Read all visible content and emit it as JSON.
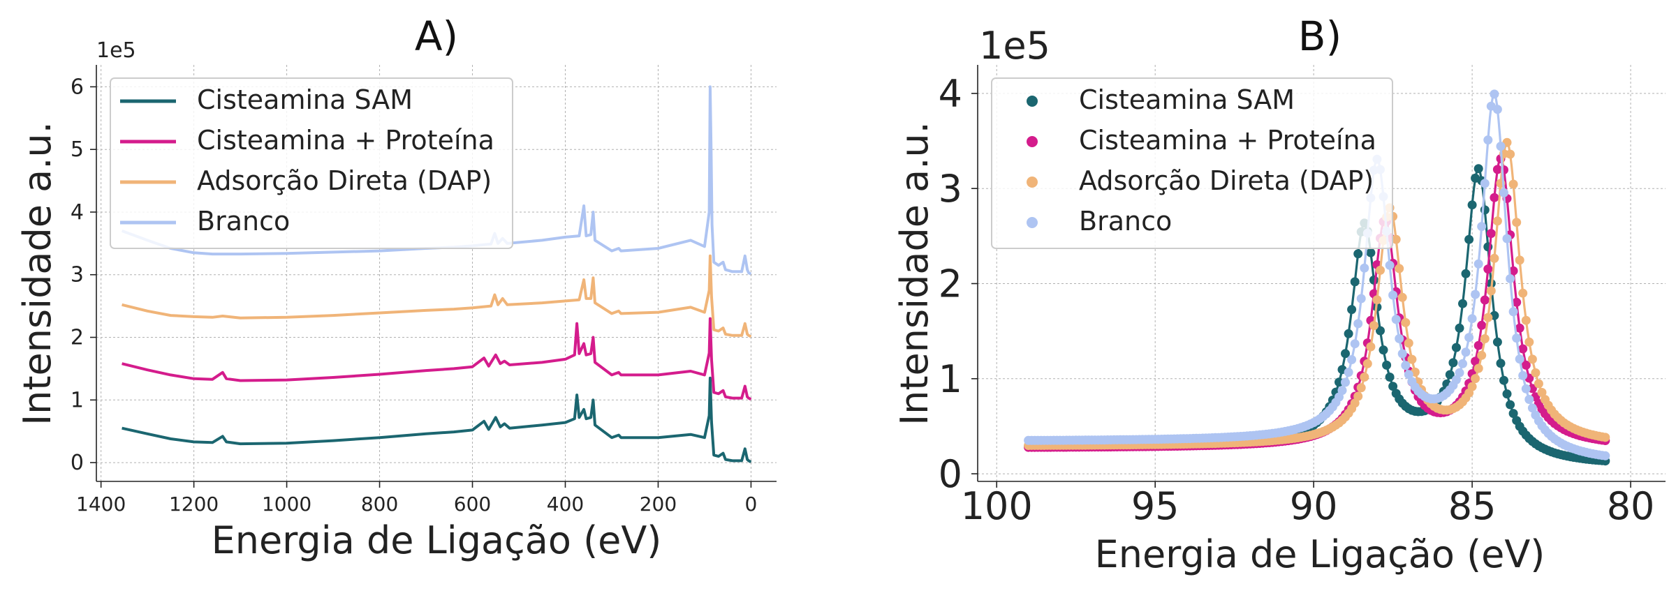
{
  "chart_data": [
    {
      "type": "line",
      "title": "A)",
      "xlabel": "Energia de Ligação (eV)",
      "ylabel": "Intensidade a.u.",
      "y_multiplier": "1e5",
      "xlim": [
        1410,
        -55
      ],
      "ylim": [
        -0.3,
        6.35
      ],
      "x_ticks": [
        1400,
        1200,
        1000,
        800,
        600,
        400,
        200,
        0
      ],
      "y_ticks": [
        0,
        1,
        2,
        3,
        4,
        5,
        6
      ],
      "grid": true,
      "legend_position": "top-left",
      "series": [
        {
          "name": "Cisteamina SAM",
          "color": "#1b6670",
          "baseline": 0,
          "points": [
            [
              1355,
              0.55
            ],
            [
              1300,
              0.46
            ],
            [
              1250,
              0.38
            ],
            [
              1200,
              0.33
            ],
            [
              1160,
              0.32
            ],
            [
              1138,
              0.42
            ],
            [
              1130,
              0.33
            ],
            [
              1100,
              0.3
            ],
            [
              1000,
              0.31
            ],
            [
              900,
              0.35
            ],
            [
              800,
              0.4
            ],
            [
              700,
              0.46
            ],
            [
              640,
              0.49
            ],
            [
              600,
              0.52
            ],
            [
              575,
              0.66
            ],
            [
              565,
              0.53
            ],
            [
              550,
              0.72
            ],
            [
              540,
              0.57
            ],
            [
              531,
              0.62
            ],
            [
              520,
              0.55
            ],
            [
              450,
              0.6
            ],
            [
              400,
              0.64
            ],
            [
              380,
              0.7
            ],
            [
              375,
              1.08
            ],
            [
              370,
              0.72
            ],
            [
              360,
              0.85
            ],
            [
              355,
              0.7
            ],
            [
              345,
              0.72
            ],
            [
              340,
              1.0
            ],
            [
              336,
              0.6
            ],
            [
              300,
              0.4
            ],
            [
              285,
              0.44
            ],
            [
              280,
              0.4
            ],
            [
              200,
              0.4
            ],
            [
              130,
              0.45
            ],
            [
              100,
              0.4
            ],
            [
              90,
              0.75
            ],
            [
              88,
              1.35
            ],
            [
              85,
              0.65
            ],
            [
              80,
              0.12
            ],
            [
              70,
              0.1
            ],
            [
              60,
              0.15
            ],
            [
              55,
              0.05
            ],
            [
              40,
              0.03
            ],
            [
              20,
              0.03
            ],
            [
              13,
              0.22
            ],
            [
              8,
              0.05
            ],
            [
              5,
              0.03
            ],
            [
              0,
              0.01
            ]
          ]
        },
        {
          "name": "Cisteamina + Proteína",
          "color": "#d41c8c",
          "baseline": 1,
          "points": [
            [
              1355,
              0.58
            ],
            [
              1300,
              0.48
            ],
            [
              1250,
              0.4
            ],
            [
              1200,
              0.34
            ],
            [
              1160,
              0.33
            ],
            [
              1138,
              0.44
            ],
            [
              1130,
              0.34
            ],
            [
              1100,
              0.31
            ],
            [
              1000,
              0.32
            ],
            [
              900,
              0.36
            ],
            [
              800,
              0.41
            ],
            [
              700,
              0.47
            ],
            [
              640,
              0.5
            ],
            [
              600,
              0.53
            ],
            [
              575,
              0.67
            ],
            [
              565,
              0.54
            ],
            [
              550,
              0.72
            ],
            [
              540,
              0.58
            ],
            [
              531,
              0.62
            ],
            [
              520,
              0.56
            ],
            [
              450,
              0.6
            ],
            [
              400,
              0.65
            ],
            [
              380,
              0.72
            ],
            [
              375,
              1.22
            ],
            [
              370,
              0.74
            ],
            [
              360,
              0.9
            ],
            [
              355,
              0.72
            ],
            [
              345,
              0.74
            ],
            [
              340,
              1.0
            ],
            [
              336,
              0.6
            ],
            [
              300,
              0.4
            ],
            [
              285,
              0.44
            ],
            [
              280,
              0.4
            ],
            [
              200,
              0.4
            ],
            [
              130,
              0.46
            ],
            [
              100,
              0.4
            ],
            [
              90,
              0.75
            ],
            [
              88,
              1.3
            ],
            [
              85,
              0.65
            ],
            [
              80,
              0.12
            ],
            [
              70,
              0.1
            ],
            [
              60,
              0.15
            ],
            [
              55,
              0.05
            ],
            [
              40,
              0.03
            ],
            [
              20,
              0.03
            ],
            [
              13,
              0.22
            ],
            [
              8,
              0.05
            ],
            [
              5,
              0.03
            ],
            [
              0,
              0.01
            ]
          ]
        },
        {
          "name": "Adsorção Direta (DAP)",
          "color": "#f0b478",
          "baseline": 2,
          "points": [
            [
              1355,
              0.52
            ],
            [
              1300,
              0.42
            ],
            [
              1250,
              0.35
            ],
            [
              1200,
              0.33
            ],
            [
              1160,
              0.32
            ],
            [
              1138,
              0.34
            ],
            [
              1100,
              0.31
            ],
            [
              1000,
              0.32
            ],
            [
              900,
              0.35
            ],
            [
              800,
              0.39
            ],
            [
              700,
              0.43
            ],
            [
              640,
              0.45
            ],
            [
              600,
              0.47
            ],
            [
              560,
              0.5
            ],
            [
              552,
              0.68
            ],
            [
              545,
              0.52
            ],
            [
              535,
              0.62
            ],
            [
              525,
              0.52
            ],
            [
              450,
              0.55
            ],
            [
              400,
              0.58
            ],
            [
              370,
              0.6
            ],
            [
              360,
              0.92
            ],
            [
              355,
              0.62
            ],
            [
              345,
              0.62
            ],
            [
              340,
              0.95
            ],
            [
              336,
              0.55
            ],
            [
              300,
              0.38
            ],
            [
              285,
              0.42
            ],
            [
              280,
              0.38
            ],
            [
              200,
              0.4
            ],
            [
              130,
              0.48
            ],
            [
              100,
              0.4
            ],
            [
              90,
              0.75
            ],
            [
              88,
              1.3
            ],
            [
              85,
              0.65
            ],
            [
              80,
              0.12
            ],
            [
              70,
              0.1
            ],
            [
              60,
              0.15
            ],
            [
              55,
              0.05
            ],
            [
              40,
              0.03
            ],
            [
              20,
              0.03
            ],
            [
              13,
              0.22
            ],
            [
              8,
              0.05
            ],
            [
              5,
              0.03
            ],
            [
              0,
              0.01
            ]
          ]
        },
        {
          "name": "Branco",
          "color": "#aec4f2",
          "baseline": 3,
          "points": [
            [
              1355,
              0.7
            ],
            [
              1300,
              0.55
            ],
            [
              1250,
              0.42
            ],
            [
              1200,
              0.35
            ],
            [
              1160,
              0.33
            ],
            [
              1100,
              0.33
            ],
            [
              1000,
              0.34
            ],
            [
              900,
              0.36
            ],
            [
              800,
              0.38
            ],
            [
              700,
              0.42
            ],
            [
              640,
              0.44
            ],
            [
              600,
              0.46
            ],
            [
              560,
              0.49
            ],
            [
              552,
              0.66
            ],
            [
              545,
              0.5
            ],
            [
              535,
              0.58
            ],
            [
              525,
              0.5
            ],
            [
              450,
              0.55
            ],
            [
              400,
              0.6
            ],
            [
              370,
              0.62
            ],
            [
              360,
              1.1
            ],
            [
              355,
              0.62
            ],
            [
              345,
              0.64
            ],
            [
              340,
              1.0
            ],
            [
              336,
              0.55
            ],
            [
              300,
              0.38
            ],
            [
              285,
              0.42
            ],
            [
              280,
              0.38
            ],
            [
              200,
              0.42
            ],
            [
              130,
              0.55
            ],
            [
              100,
              0.45
            ],
            [
              90,
              1.0
            ],
            [
              88,
              3.0
            ],
            [
              86,
              2.0
            ],
            [
              84,
              0.8
            ],
            [
              80,
              0.2
            ],
            [
              70,
              0.15
            ],
            [
              60,
              0.2
            ],
            [
              55,
              0.08
            ],
            [
              40,
              0.05
            ],
            [
              20,
              0.05
            ],
            [
              13,
              0.3
            ],
            [
              8,
              0.08
            ],
            [
              5,
              0.03
            ],
            [
              0,
              0.01
            ]
          ]
        }
      ]
    },
    {
      "type": "scatter",
      "title": "B)",
      "xlabel": "Energia de Ligação (eV)",
      "ylabel": "Intensidade a.u.",
      "y_multiplier": "1e5",
      "xlim": [
        100.6,
        78.9
      ],
      "ylim": [
        -0.08,
        4.3
      ],
      "x_ticks": [
        100,
        95,
        90,
        85,
        80
      ],
      "y_ticks": [
        0,
        1,
        2,
        3,
        4
      ],
      "x_range_data": [
        99,
        80.8
      ],
      "grid": true,
      "legend_position": "top-left",
      "series": [
        {
          "name": "Cisteamina SAM",
          "color": "#1b6670",
          "start": 0.28,
          "end": 0.08,
          "step_center": 84.5,
          "gamma": 0.5,
          "peaks": [
            {
              "center": 88.4,
              "height": 2.3
            },
            {
              "center": 84.8,
              "height": 2.95
            }
          ]
        },
        {
          "name": "Cisteamina + Proteína",
          "color": "#d41c8c",
          "start": 0.27,
          "end": 0.27,
          "step_center": 84.5,
          "gamma": 0.5,
          "peaks": [
            {
              "center": 87.75,
              "height": 2.35
            },
            {
              "center": 84.1,
              "height": 3.0
            }
          ]
        },
        {
          "name": "Adsorção Direta (DAP)",
          "color": "#f0b478",
          "start": 0.29,
          "end": 0.29,
          "step_center": 84.5,
          "gamma": 0.5,
          "peaks": [
            {
              "center": 87.6,
              "height": 2.45
            },
            {
              "center": 83.9,
              "height": 3.15
            }
          ]
        },
        {
          "name": "Branco",
          "color": "#aec4f2",
          "start": 0.34,
          "end": 0.1,
          "step_center": 84.5,
          "gamma": 0.5,
          "peaks": [
            {
              "center": 88.0,
              "height": 2.9
            },
            {
              "center": 84.3,
              "height": 3.75
            }
          ]
        }
      ]
    }
  ]
}
